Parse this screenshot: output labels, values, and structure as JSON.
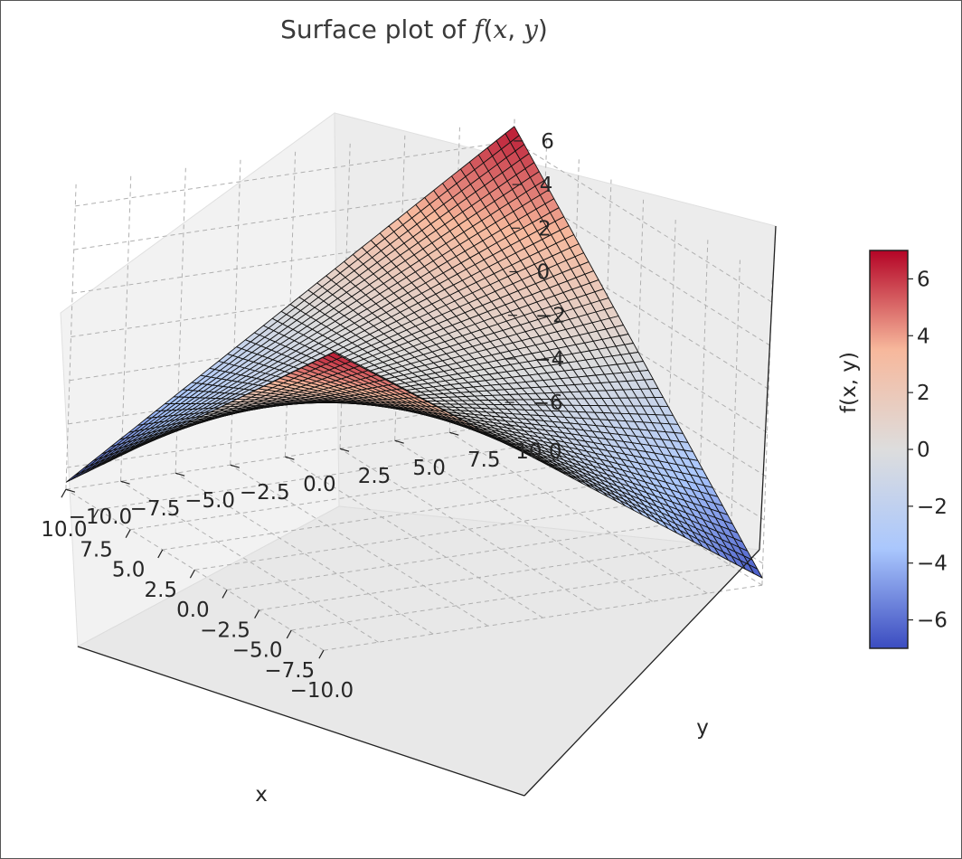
{
  "chart_data": {
    "type": "surface3d",
    "title": "Surface plot of f(x, y)",
    "title_parts": {
      "prefix": "Surface plot of ",
      "func": "f",
      "open": "(",
      "xvar": "x",
      "sep": ", ",
      "yvar": "y",
      "close": ")"
    },
    "function": "x * y / 15 (saddle surface)",
    "xlabel": "x",
    "ylabel": "y",
    "zlabel": "",
    "colorbar_label": "f(x, y)",
    "colormap": "coolwarm",
    "colormap_colors": [
      "#3b4cc0",
      "#aac7fd",
      "#dddddd",
      "#f7b89c",
      "#b40426"
    ],
    "xlim": [
      -10,
      10
    ],
    "ylim": [
      -10,
      10
    ],
    "zlim": [
      -7,
      7
    ],
    "x_ticks": [
      -10.0,
      -7.5,
      -5.0,
      -2.5,
      0.0,
      2.5,
      5.0,
      7.5,
      10.0
    ],
    "x_tick_labels": [
      "−10.0",
      "−7.5",
      "−5.0",
      "−2.5",
      "0.0",
      "2.5",
      "5.0",
      "7.5",
      "10.0"
    ],
    "y_ticks": [
      -10.0,
      -7.5,
      -5.0,
      -2.5,
      0.0,
      2.5,
      5.0,
      7.5,
      10.0
    ],
    "y_tick_labels": [
      "−10.0",
      "−7.5",
      "−5.0",
      "−2.5",
      "0.0",
      "2.5",
      "5.0",
      "7.5",
      "10.0"
    ],
    "z_ticks": [
      -6,
      -4,
      -2,
      0,
      2,
      4,
      6
    ],
    "z_tick_labels": [
      "−6",
      "−4",
      "−2",
      "0",
      "2",
      "4",
      "6"
    ],
    "colorbar_ticks": [
      -6,
      -4,
      -2,
      0,
      2,
      4,
      6
    ],
    "colorbar_tick_labels": [
      "−6",
      "−4",
      "−2",
      "0",
      "2",
      "4",
      "6"
    ],
    "colorbar_range": [
      -7,
      7
    ],
    "corner_values": {
      "x_min_y_min": 6.67,
      "x_max_y_min": -6.67,
      "x_max_y_max": 6.67,
      "x_min_y_max": -6.67
    },
    "grid": true,
    "grid_style": "dashed",
    "mesh_resolution": 50
  }
}
